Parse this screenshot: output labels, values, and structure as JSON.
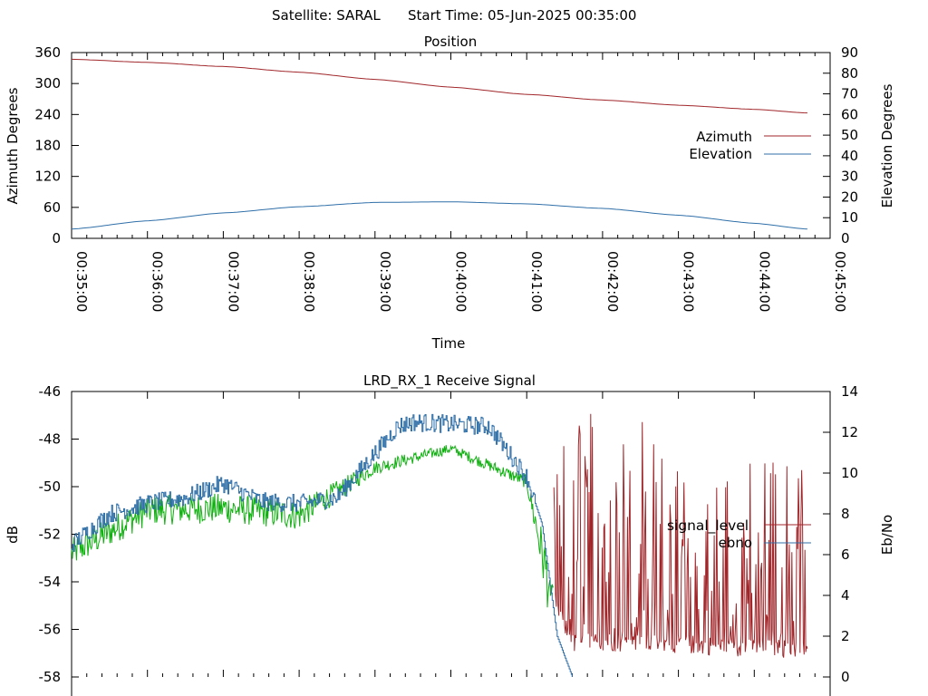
{
  "header": {
    "satellite": "Satellite: SARAL",
    "start_time": "Start Time: 05-Jun-2025 00:35:00"
  },
  "chart_data": [
    {
      "type": "line",
      "title": "Position",
      "xlabel": "Time",
      "ylabel": "Azimuth Degrees",
      "y2label": "Elevation Degrees",
      "x_ticks": [
        "00:35:00",
        "00:36:00",
        "00:37:00",
        "00:38:00",
        "00:39:00",
        "00:40:00",
        "00:41:00",
        "00:42:00",
        "00:43:00",
        "00:44:00",
        "00:45:00"
      ],
      "y_ticks": [
        "0",
        "60",
        "120",
        "180",
        "240",
        "300",
        "360"
      ],
      "y2_ticks": [
        "0",
        "10",
        "20",
        "30",
        "40",
        "50",
        "60",
        "70",
        "80",
        "90"
      ],
      "xlim_minutes": [
        0,
        10
      ],
      "ylim": [
        0,
        360
      ],
      "y2lim": [
        0,
        90
      ],
      "legend_position": "right",
      "grid": false,
      "series": [
        {
          "name": "Azimuth",
          "axis": "left",
          "color": "#a0262a",
          "x_minutes": [
            0,
            1,
            2,
            3,
            4,
            5,
            6,
            7,
            8,
            9,
            9.7
          ],
          "values": [
            347,
            341,
            333,
            322,
            308,
            293,
            279,
            268,
            258,
            250,
            243
          ]
        },
        {
          "name": "Elevation",
          "axis": "right",
          "color": "#2f6fa8",
          "x_minutes": [
            0,
            1,
            2,
            3,
            4,
            5,
            6,
            7,
            8,
            9,
            9.7
          ],
          "values": [
            4.5,
            8.5,
            12.3,
            15.3,
            17.4,
            17.7,
            16.7,
            14.5,
            11.2,
            7.3,
            4.5
          ]
        }
      ]
    },
    {
      "type": "line",
      "title": "LRD_RX_1 Receive Signal",
      "xlabel": "",
      "ylabel": "dB",
      "y2label": "Eb/No",
      "y_ticks": [
        "-46",
        "-48",
        "-50",
        "-52",
        "-54",
        "-56",
        "-58"
      ],
      "y2_ticks": [
        "14",
        "12",
        "10",
        "8",
        "6",
        "4",
        "2",
        "0"
      ],
      "xlim_minutes": [
        0,
        10
      ],
      "ylim": [
        -58,
        -46
      ],
      "y2lim": [
        0,
        14
      ],
      "legend_position": "right",
      "grid": false,
      "series": [
        {
          "name": "signal_level",
          "axis": "left",
          "color": "#a0262a",
          "x_minutes": [
            0,
            1,
            2,
            3,
            4,
            5,
            6,
            6.3,
            6.6,
            7,
            7.5,
            8,
            8.5,
            9,
            9.7
          ],
          "values": [
            -52.8,
            -51.0,
            -50.9,
            -51.2,
            -49.2,
            -48.4,
            -49.8,
            -54.2,
            -56.6,
            -56.5,
            -56.6,
            -56.6,
            -56.7,
            -56.8,
            -56.8
          ],
          "noise_amplitude_db": [
            0.9,
            0.9,
            0.9,
            0.9,
            0.4,
            0.3,
            0.4,
            2.0,
            5.5,
            5.5,
            5.5,
            4.0,
            4.0,
            4.5,
            4.5
          ]
        },
        {
          "name": "ebno",
          "axis": "right",
          "color": "#2f6fa8",
          "x_minutes": [
            0,
            0.5,
            1,
            1.5,
            2,
            2.5,
            3,
            3.5,
            4,
            4.3,
            4.5,
            5,
            5.5,
            6,
            6.2,
            6.4,
            6.6
          ],
          "values": [
            6.5,
            8.0,
            8.5,
            8.8,
            9.5,
            8.6,
            8.5,
            8.8,
            11.0,
            12.3,
            12.5,
            12.4,
            12.3,
            9.8,
            7.5,
            2.0,
            0.0
          ]
        }
      ]
    }
  ]
}
